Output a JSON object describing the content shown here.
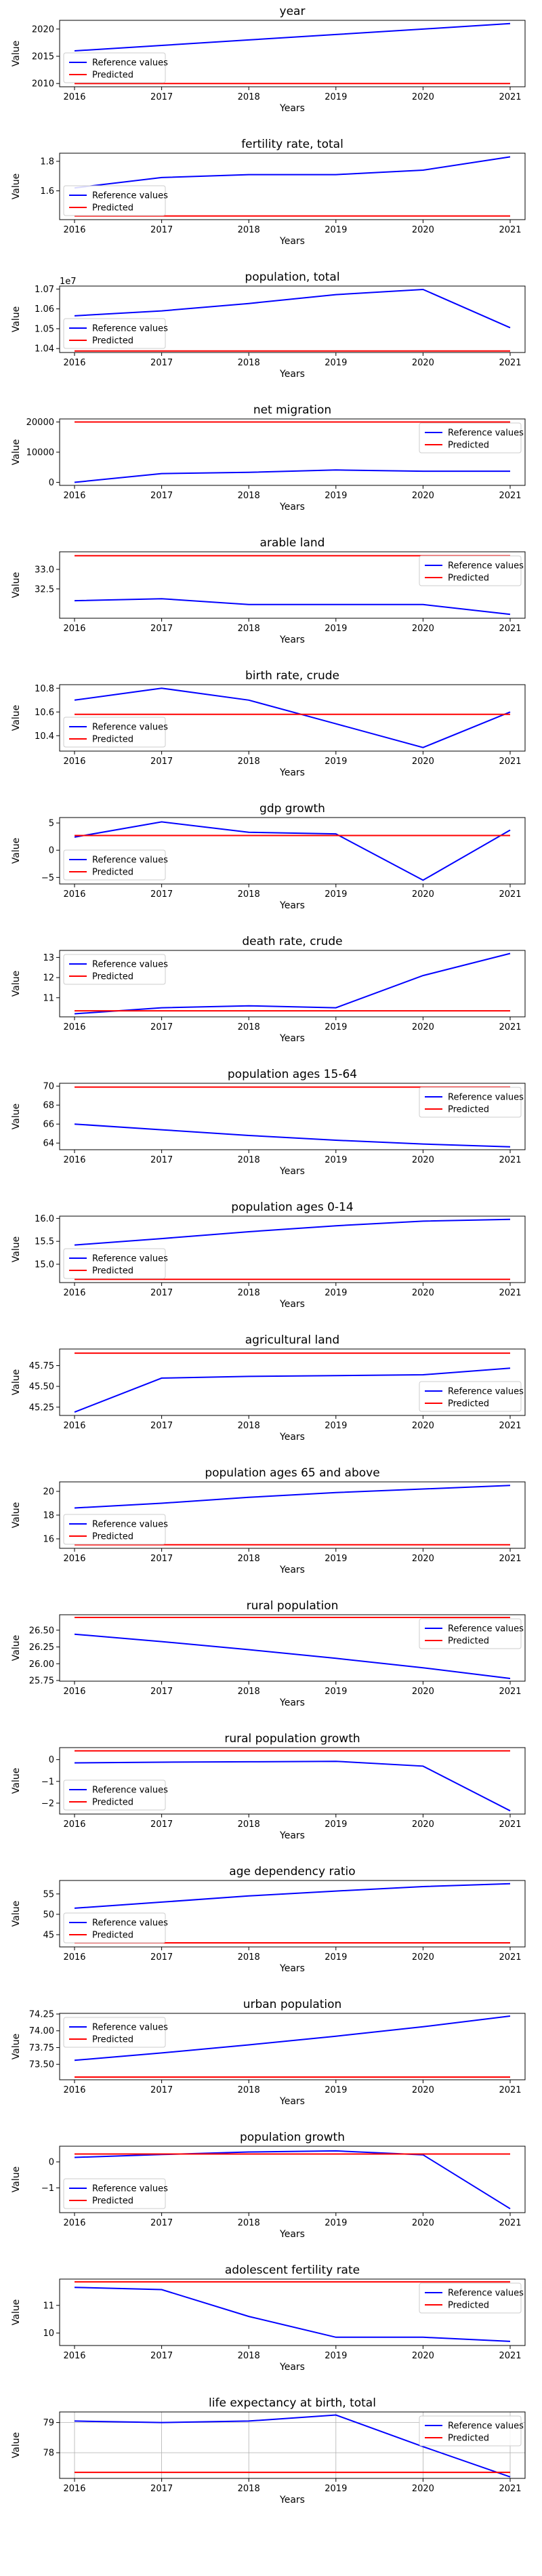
{
  "colors": {
    "reference": "#0000ff",
    "predicted": "#ff0000",
    "frame": "#000000",
    "legend_border": "#cccccc",
    "grid": "#b0b0b0"
  },
  "chart_data": [
    {
      "type": "line",
      "title": "year",
      "xlabel": "Years",
      "ylabel": "Value",
      "x": [
        "2016",
        "2017",
        "2018",
        "2019",
        "2020",
        "2021"
      ],
      "ylim": [
        2009.4,
        2021.6
      ],
      "yticks": [
        2010,
        2015,
        2020
      ],
      "ytick_labels": [
        "2010",
        "2015",
        "2020"
      ],
      "legend": "lower-left",
      "grid": false,
      "series": [
        {
          "name": "Reference values",
          "values": [
            2016,
            2017,
            2018,
            2019,
            2020,
            2021
          ]
        },
        {
          "name": "Predicted",
          "values": [
            2010,
            2010,
            2010,
            2010,
            2010,
            2010
          ]
        }
      ]
    },
    {
      "type": "line",
      "title": "fertility rate, total",
      "xlabel": "Years",
      "ylabel": "Value",
      "x": [
        "2016",
        "2017",
        "2018",
        "2019",
        "2020",
        "2021"
      ],
      "ylim": [
        1.405,
        1.855
      ],
      "yticks": [
        1.6,
        1.8
      ],
      "ytick_labels": [
        "1.6",
        "1.8"
      ],
      "legend": "lower-left",
      "grid": false,
      "series": [
        {
          "name": "Reference values",
          "values": [
            1.62,
            1.69,
            1.71,
            1.71,
            1.74,
            1.83
          ]
        },
        {
          "name": "Predicted",
          "values": [
            1.43,
            1.43,
            1.43,
            1.43,
            1.43,
            1.43
          ]
        }
      ]
    },
    {
      "type": "line",
      "title": "population, total",
      "xlabel": "Years",
      "ylabel": "Value",
      "x": [
        "2016",
        "2017",
        "2018",
        "2019",
        "2020",
        "2021"
      ],
      "ylim": [
        10380000,
        10715000
      ],
      "yticks": [
        10400000,
        10500000,
        10600000,
        10700000
      ],
      "ytick_labels": [
        "1.04",
        "1.05",
        "1.06",
        "1.07"
      ],
      "offset_text": "1e7",
      "legend": "lower-left",
      "grid": false,
      "series": [
        {
          "name": "Reference values",
          "values": [
            10565000,
            10590000,
            10627000,
            10672000,
            10698000,
            10505000
          ]
        },
        {
          "name": "Predicted",
          "values": [
            10388000,
            10388000,
            10388000,
            10388000,
            10388000,
            10388000
          ]
        }
      ]
    },
    {
      "type": "line",
      "title": "net migration",
      "xlabel": "Years",
      "ylabel": "Value",
      "x": [
        "2016",
        "2017",
        "2018",
        "2019",
        "2020",
        "2021"
      ],
      "ylim": [
        -1000,
        21000
      ],
      "yticks": [
        0,
        10000,
        20000
      ],
      "ytick_labels": [
        "0",
        "10000",
        "20000"
      ],
      "legend": "upper-right",
      "grid": false,
      "series": [
        {
          "name": "Reference values",
          "values": [
            0,
            2900,
            3300,
            4100,
            3700,
            3700
          ]
        },
        {
          "name": "Predicted",
          "values": [
            20000,
            20000,
            20000,
            20000,
            20000,
            20000
          ]
        }
      ]
    },
    {
      "type": "line",
      "title": "arable land",
      "xlabel": "Years",
      "ylabel": "Value",
      "x": [
        "2016",
        "2017",
        "2018",
        "2019",
        "2020",
        "2021"
      ],
      "ylim": [
        31.75,
        33.45
      ],
      "yticks": [
        32.5,
        33.0
      ],
      "ytick_labels": [
        "32.5",
        "33.0"
      ],
      "legend": "upper-right",
      "grid": false,
      "series": [
        {
          "name": "Reference values",
          "values": [
            32.2,
            32.25,
            32.1,
            32.1,
            32.1,
            31.85
          ]
        },
        {
          "name": "Predicted",
          "values": [
            33.35,
            33.35,
            33.35,
            33.35,
            33.35,
            33.35
          ]
        }
      ]
    },
    {
      "type": "line",
      "title": "birth rate, crude",
      "xlabel": "Years",
      "ylabel": "Value",
      "x": [
        "2016",
        "2017",
        "2018",
        "2019",
        "2020",
        "2021"
      ],
      "ylim": [
        10.27,
        10.83
      ],
      "yticks": [
        10.4,
        10.6,
        10.8
      ],
      "ytick_labels": [
        "10.4",
        "10.6",
        "10.8"
      ],
      "legend": "lower-left",
      "grid": false,
      "series": [
        {
          "name": "Reference values",
          "values": [
            10.7,
            10.8,
            10.7,
            10.5,
            10.3,
            10.6
          ]
        },
        {
          "name": "Predicted",
          "values": [
            10.58,
            10.58,
            10.58,
            10.58,
            10.58,
            10.58
          ]
        }
      ]
    },
    {
      "type": "line",
      "title": "gdp growth",
      "xlabel": "Years",
      "ylabel": "Value",
      "x": [
        "2016",
        "2017",
        "2018",
        "2019",
        "2020",
        "2021"
      ],
      "ylim": [
        -6.2,
        6.0
      ],
      "yticks": [
        -5,
        0,
        5
      ],
      "ytick_labels": [
        "−5",
        "0",
        "5"
      ],
      "legend": "lower-left",
      "grid": false,
      "series": [
        {
          "name": "Reference values",
          "values": [
            2.4,
            5.2,
            3.3,
            3.0,
            -5.5,
            3.7
          ]
        },
        {
          "name": "Predicted",
          "values": [
            2.7,
            2.7,
            2.7,
            2.7,
            2.7,
            2.7
          ]
        }
      ]
    },
    {
      "type": "line",
      "title": "death rate, crude",
      "xlabel": "Years",
      "ylabel": "Value",
      "x": [
        "2016",
        "2017",
        "2018",
        "2019",
        "2020",
        "2021"
      ],
      "ylim": [
        10.05,
        13.35
      ],
      "yticks": [
        11,
        12,
        13
      ],
      "ytick_labels": [
        "11",
        "12",
        "13"
      ],
      "legend": "upper-left",
      "grid": false,
      "series": [
        {
          "name": "Reference values",
          "values": [
            10.2,
            10.5,
            10.6,
            10.5,
            12.1,
            13.2
          ]
        },
        {
          "name": "Predicted",
          "values": [
            10.35,
            10.35,
            10.35,
            10.35,
            10.35,
            10.35
          ]
        }
      ]
    },
    {
      "type": "line",
      "title": "population ages 15-64",
      "xlabel": "Years",
      "ylabel": "Value",
      "x": [
        "2016",
        "2017",
        "2018",
        "2019",
        "2020",
        "2021"
      ],
      "ylim": [
        63.3,
        70.3
      ],
      "yticks": [
        64,
        66,
        68,
        70
      ],
      "ytick_labels": [
        "64",
        "66",
        "68",
        "70"
      ],
      "legend": "upper-right",
      "grid": false,
      "series": [
        {
          "name": "Reference values",
          "values": [
            66.0,
            65.4,
            64.8,
            64.3,
            63.9,
            63.6
          ]
        },
        {
          "name": "Predicted",
          "values": [
            69.9,
            69.9,
            69.9,
            69.9,
            69.9,
            69.9
          ]
        }
      ]
    },
    {
      "type": "line",
      "title": "population ages 0-14",
      "xlabel": "Years",
      "ylabel": "Value",
      "x": [
        "2016",
        "2017",
        "2018",
        "2019",
        "2020",
        "2021"
      ],
      "ylim": [
        14.6,
        16.05
      ],
      "yticks": [
        15.0,
        15.5,
        16.0
      ],
      "ytick_labels": [
        "15.0",
        "15.5",
        "16.0"
      ],
      "legend": "lower-left",
      "grid": false,
      "series": [
        {
          "name": "Reference values",
          "values": [
            15.42,
            15.56,
            15.71,
            15.84,
            15.94,
            15.98
          ]
        },
        {
          "name": "Predicted",
          "values": [
            14.67,
            14.67,
            14.67,
            14.67,
            14.67,
            14.67
          ]
        }
      ]
    },
    {
      "type": "line",
      "title": "agricultural land",
      "xlabel": "Years",
      "ylabel": "Value",
      "x": [
        "2016",
        "2017",
        "2018",
        "2019",
        "2020",
        "2021"
      ],
      "ylim": [
        45.15,
        45.95
      ],
      "yticks": [
        45.25,
        45.5,
        45.75
      ],
      "ytick_labels": [
        "45.25",
        "45.50",
        "45.75"
      ],
      "legend": "lower-right",
      "grid": false,
      "series": [
        {
          "name": "Reference values",
          "values": [
            45.19,
            45.6,
            45.62,
            45.63,
            45.64,
            45.72
          ]
        },
        {
          "name": "Predicted",
          "values": [
            45.9,
            45.9,
            45.9,
            45.9,
            45.9,
            45.9
          ]
        }
      ]
    },
    {
      "type": "line",
      "title": "population ages 65 and above",
      "xlabel": "Years",
      "ylabel": "Value",
      "x": [
        "2016",
        "2017",
        "2018",
        "2019",
        "2020",
        "2021"
      ],
      "ylim": [
        15.2,
        20.8
      ],
      "yticks": [
        16,
        18,
        20
      ],
      "ytick_labels": [
        "16",
        "18",
        "20"
      ],
      "legend": "lower-left",
      "grid": false,
      "series": [
        {
          "name": "Reference values",
          "values": [
            18.6,
            19.0,
            19.5,
            19.9,
            20.2,
            20.5
          ]
        },
        {
          "name": "Predicted",
          "values": [
            15.5,
            15.5,
            15.5,
            15.5,
            15.5,
            15.5
          ]
        }
      ]
    },
    {
      "type": "line",
      "title": "rural population",
      "xlabel": "Years",
      "ylabel": "Value",
      "x": [
        "2016",
        "2017",
        "2018",
        "2019",
        "2020",
        "2021"
      ],
      "ylim": [
        25.74,
        26.73
      ],
      "yticks": [
        25.75,
        26.0,
        26.25,
        26.5
      ],
      "ytick_labels": [
        "25.75",
        "26.00",
        "26.25",
        "26.50"
      ],
      "legend": "upper-right",
      "grid": false,
      "series": [
        {
          "name": "Reference values",
          "values": [
            26.44,
            26.33,
            26.21,
            26.08,
            25.94,
            25.78
          ]
        },
        {
          "name": "Predicted",
          "values": [
            26.69,
            26.69,
            26.69,
            26.69,
            26.69,
            26.69
          ]
        }
      ]
    },
    {
      "type": "line",
      "title": "rural population growth",
      "xlabel": "Years",
      "ylabel": "Value",
      "x": [
        "2016",
        "2017",
        "2018",
        "2019",
        "2020",
        "2021"
      ],
      "ylim": [
        -2.5,
        0.55
      ],
      "yticks": [
        -2,
        -1,
        0
      ],
      "ytick_labels": [
        "−2",
        "−1",
        "0"
      ],
      "legend": "lower-left",
      "grid": false,
      "series": [
        {
          "name": "Reference values",
          "values": [
            -0.15,
            -0.12,
            -0.1,
            -0.08,
            -0.3,
            -2.35
          ]
        },
        {
          "name": "Predicted",
          "values": [
            0.4,
            0.4,
            0.4,
            0.4,
            0.4,
            0.4
          ]
        }
      ]
    },
    {
      "type": "line",
      "title": "age dependency ratio",
      "xlabel": "Years",
      "ylabel": "Value",
      "x": [
        "2016",
        "2017",
        "2018",
        "2019",
        "2020",
        "2021"
      ],
      "ylim": [
        42.0,
        58.3
      ],
      "yticks": [
        45,
        50,
        55
      ],
      "ytick_labels": [
        "45",
        "50",
        "55"
      ],
      "legend": "lower-left",
      "grid": false,
      "series": [
        {
          "name": "Reference values",
          "values": [
            51.5,
            53.0,
            54.5,
            55.7,
            56.8,
            57.5
          ]
        },
        {
          "name": "Predicted",
          "values": [
            43.0,
            43.0,
            43.0,
            43.0,
            43.0,
            43.0
          ]
        }
      ]
    },
    {
      "type": "line",
      "title": "urban population",
      "xlabel": "Years",
      "ylabel": "Value",
      "x": [
        "2016",
        "2017",
        "2018",
        "2019",
        "2020",
        "2021"
      ],
      "ylim": [
        73.27,
        74.26
      ],
      "yticks": [
        73.5,
        73.75,
        74.0,
        74.25
      ],
      "ytick_labels": [
        "73.50",
        "73.75",
        "74.00",
        "74.25"
      ],
      "legend": "upper-left",
      "grid": false,
      "series": [
        {
          "name": "Reference values",
          "values": [
            73.56,
            73.67,
            73.79,
            73.92,
            74.06,
            74.22
          ]
        },
        {
          "name": "Predicted",
          "values": [
            73.31,
            73.31,
            73.31,
            73.31,
            73.31,
            73.31
          ]
        }
      ]
    },
    {
      "type": "line",
      "title": "population growth",
      "xlabel": "Years",
      "ylabel": "Value",
      "x": [
        "2016",
        "2017",
        "2018",
        "2019",
        "2020",
        "2021"
      ],
      "ylim": [
        -1.95,
        0.6
      ],
      "yticks": [
        -1,
        0
      ],
      "ytick_labels": [
        "−1",
        "0"
      ],
      "legend": "lower-left",
      "grid": false,
      "series": [
        {
          "name": "Reference values",
          "values": [
            0.17,
            0.28,
            0.38,
            0.42,
            0.27,
            -1.8
          ]
        },
        {
          "name": "Predicted",
          "values": [
            0.3,
            0.3,
            0.3,
            0.3,
            0.3,
            0.3
          ]
        }
      ]
    },
    {
      "type": "line",
      "title": "adolescent fertility rate",
      "xlabel": "Years",
      "ylabel": "Value",
      "x": [
        "2016",
        "2017",
        "2018",
        "2019",
        "2020",
        "2021"
      ],
      "ylim": [
        9.55,
        11.95
      ],
      "yticks": [
        10,
        11
      ],
      "ytick_labels": [
        "10",
        "11"
      ],
      "legend": "upper-right",
      "grid": false,
      "series": [
        {
          "name": "Reference values",
          "values": [
            11.65,
            11.57,
            10.6,
            9.85,
            9.85,
            9.7
          ]
        },
        {
          "name": "Predicted",
          "values": [
            11.85,
            11.85,
            11.85,
            11.85,
            11.85,
            11.85
          ]
        }
      ]
    },
    {
      "type": "line",
      "title": "life expectancy at birth, total",
      "xlabel": "Years",
      "ylabel": "Value",
      "x": [
        "2016",
        "2017",
        "2018",
        "2019",
        "2020",
        "2021"
      ],
      "ylim": [
        77.15,
        79.35
      ],
      "yticks": [
        78,
        79
      ],
      "ytick_labels": [
        "78",
        "79"
      ],
      "legend": "upper-right",
      "grid": true,
      "series": [
        {
          "name": "Reference values",
          "values": [
            79.05,
            79.0,
            79.05,
            79.25,
            78.2,
            77.2
          ]
        },
        {
          "name": "Predicted",
          "values": [
            77.35,
            77.35,
            77.35,
            77.35,
            77.35,
            77.35
          ]
        }
      ]
    }
  ]
}
